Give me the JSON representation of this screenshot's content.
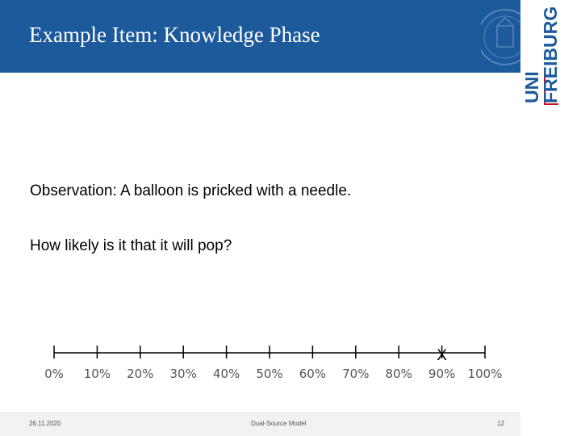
{
  "slide": {
    "title": "Example Item: Knowledge Phase",
    "observation": "Observation: A balloon is pricked with a needle.",
    "question": "How likely is it that it will pop?"
  },
  "logo": {
    "line1": "UNI",
    "line2": "FREIBURG"
  },
  "scale": {
    "ticks": [
      "0%",
      "10%",
      "20%",
      "30%",
      "40%",
      "50%",
      "60%",
      "70%",
      "80%",
      "90%",
      "100%"
    ],
    "marker_label": "X",
    "marker_value": 90
  },
  "footer": {
    "date": "26.11.2020",
    "center": "Dual-Source Model",
    "page": "12"
  }
}
